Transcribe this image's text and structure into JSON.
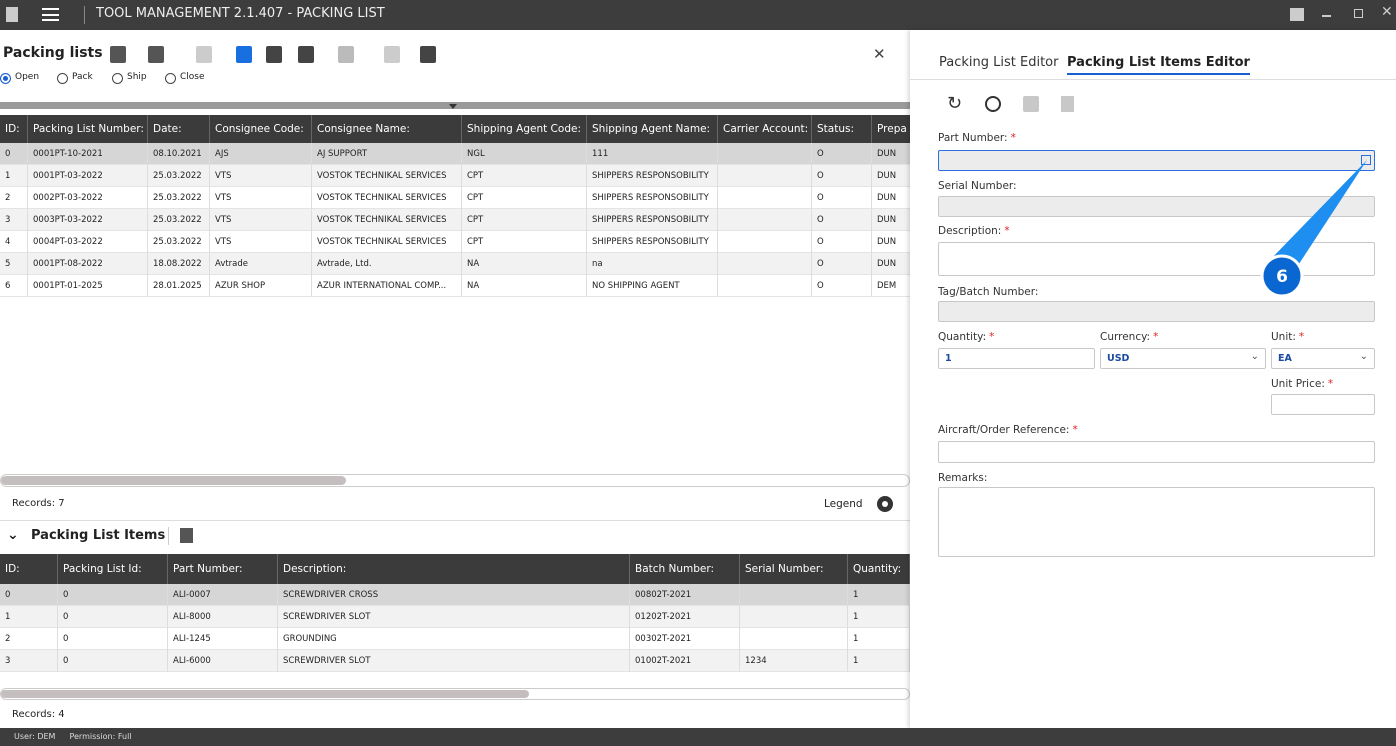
{
  "titlebar": {
    "title": "TOOL MANAGEMENT 2.1.407 - PACKING LIST"
  },
  "packing_lists": {
    "title": "Packing lists",
    "filters": [
      "Open",
      "Pack",
      "Ship",
      "Close"
    ],
    "columns": [
      "ID:",
      "Packing List Number:",
      "Date:",
      "Consignee Code:",
      "Consignee Name:",
      "Shipping Agent Code:",
      "Shipping Agent Name:",
      "Carrier Account:",
      "Status:",
      "Prepa"
    ],
    "rows": [
      [
        "0",
        "0001PT-10-2021",
        "08.10.2021",
        "AJS",
        "AJ SUPPORT",
        "NGL",
        "111",
        null,
        "O",
        "DUN"
      ],
      [
        "1",
        "0001PT-03-2022",
        "25.03.2022",
        "VTS",
        "VOSTOK TECHNIKAL SERVICES",
        "CPT",
        "SHIPPERS RESPONSOBILITY",
        null,
        "O",
        "DUN"
      ],
      [
        "2",
        "0002PT-03-2022",
        "25.03.2022",
        "VTS",
        "VOSTOK TECHNIKAL SERVICES",
        "CPT",
        "SHIPPERS RESPONSOBILITY",
        null,
        "O",
        "DUN"
      ],
      [
        "3",
        "0003PT-03-2022",
        "25.03.2022",
        "VTS",
        "VOSTOK TECHNIKAL SERVICES",
        "CPT",
        "SHIPPERS RESPONSOBILITY",
        null,
        "O",
        "DUN"
      ],
      [
        "4",
        "0004PT-03-2022",
        "25.03.2022",
        "VTS",
        "VOSTOK TECHNIKAL SERVICES",
        "CPT",
        "SHIPPERS RESPONSOBILITY",
        null,
        "O",
        "DUN"
      ],
      [
        "5",
        "0001PT-08-2022",
        "18.08.2022",
        "Avtrade",
        "Avtrade, Ltd.",
        "NA",
        "na",
        null,
        "O",
        "DUN"
      ],
      [
        "6",
        "0001PT-01-2025",
        "28.01.2025",
        "AZUR SHOP",
        "AZUR INTERNATIONAL COMP...",
        "NA",
        "NO SHIPPING AGENT",
        null,
        "O",
        "DEM"
      ]
    ],
    "records": "Records: 7",
    "legend": "Legend"
  },
  "items": {
    "title": "Packing List Items",
    "columns": [
      "ID:",
      "Packing List Id:",
      "Part Number:",
      "Description:",
      "Batch Number:",
      "Serial Number:",
      "Quantity:"
    ],
    "rows": [
      [
        "0",
        "0",
        "ALI-0007",
        "SCREWDRIVER CROSS",
        "00802T-2021",
        null,
        "1"
      ],
      [
        "1",
        "0",
        "ALI-8000",
        "SCREWDRIVER SLOT",
        "01202T-2021",
        null,
        "1"
      ],
      [
        "2",
        "0",
        "ALI-1245",
        "GROUNDING",
        "00302T-2021",
        null,
        "1"
      ],
      [
        "3",
        "0",
        "ALI-6000",
        "SCREWDRIVER SLOT",
        "01002T-2021",
        "1234",
        "1"
      ]
    ],
    "records": "Records: 4"
  },
  "editor": {
    "tabs": [
      "Packing List Editor",
      "Packing List Items Editor"
    ],
    "required_mark": "*",
    "fields": [
      {
        "label": "Part Number:",
        "required": true
      },
      {
        "label": "Serial Number:",
        "required": false
      },
      {
        "label": "Description:",
        "required": true
      },
      {
        "label": "Tag/Batch Number:",
        "required": false
      },
      {
        "label": "Quantity:",
        "required": true,
        "value": "1"
      },
      {
        "label": "Currency:",
        "required": true,
        "value": "USD"
      },
      {
        "label": "Unit:",
        "required": true,
        "value": "EA"
      },
      {
        "label": "Unit Price:",
        "required": true
      },
      {
        "label": "Aircraft/Order Reference:",
        "required": true
      },
      {
        "label": "Remarks:",
        "required": false
      }
    ],
    "callout": "6"
  },
  "statusbar": {
    "user": "User: DEM",
    "permission": "Permission: Full"
  }
}
